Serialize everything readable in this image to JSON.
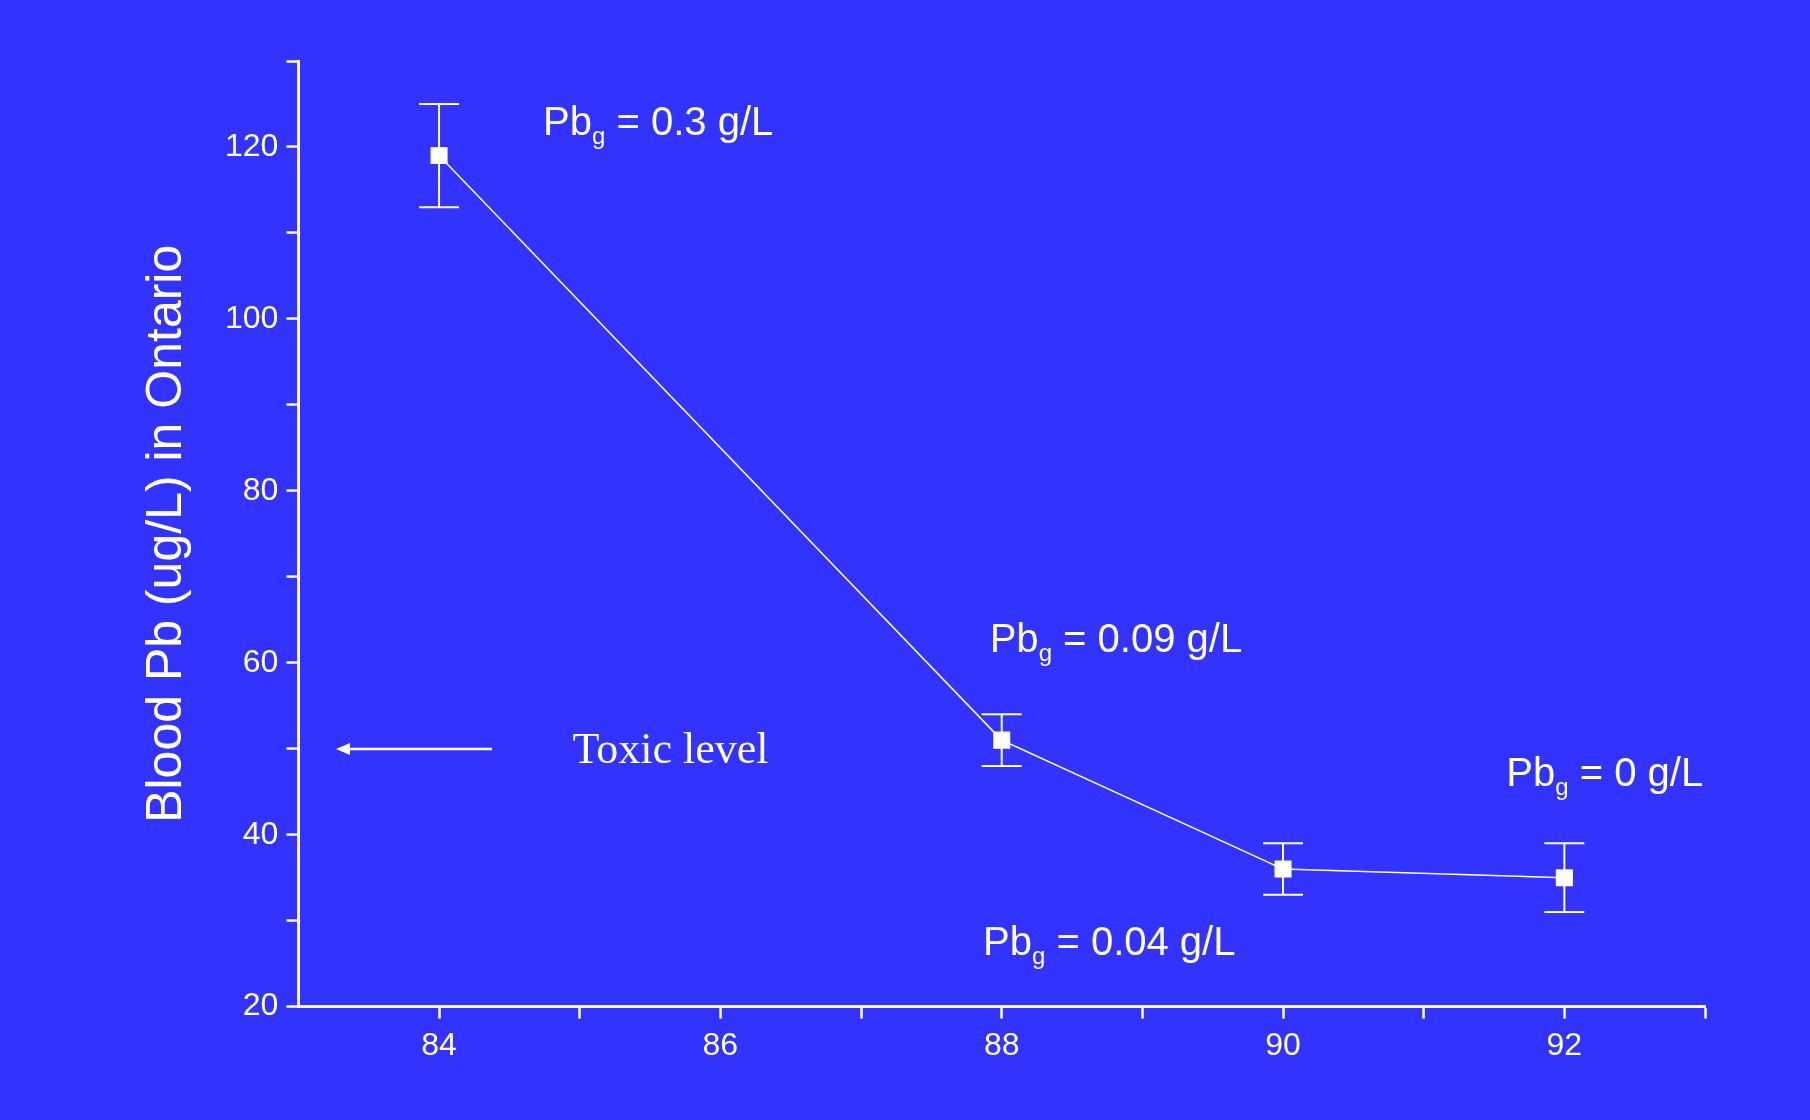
{
  "chart_data": {
    "type": "line",
    "ylabel": "Blood Pb (ug/L) in Ontario",
    "x": [
      84,
      88,
      90,
      92
    ],
    "series": [
      {
        "color": "#ffffff",
        "values": [
          119,
          51,
          36,
          35
        ],
        "errors": [
          [
            113,
            125
          ],
          [
            48,
            54
          ],
          [
            33,
            39
          ],
          [
            31,
            39
          ]
        ]
      }
    ],
    "xlim": [
      83,
      93
    ],
    "xticks": [
      {
        "value": 84,
        "label": "84"
      },
      {
        "value": 85,
        "label": null
      },
      {
        "value": 86,
        "label": "86"
      },
      {
        "value": 87,
        "label": null
      },
      {
        "value": 88,
        "label": "88"
      },
      {
        "value": 89,
        "label": null
      },
      {
        "value": 90,
        "label": "90"
      },
      {
        "value": 91,
        "label": null
      },
      {
        "value": 92,
        "label": "92"
      },
      {
        "value": 93,
        "label": null
      }
    ],
    "ylim": [
      20,
      130
    ],
    "yticks": [
      20,
      {
        "value": 30,
        "label": null
      },
      40,
      {
        "value": 50,
        "label": null
      },
      60,
      {
        "value": 70,
        "label": null
      },
      80,
      {
        "value": 90,
        "label": null
      },
      100,
      {
        "value": 110,
        "label": null
      },
      120,
      {
        "value": 130,
        "label": null
      }
    ],
    "marker": "square",
    "grid": false,
    "legend": false,
    "ref_lines": [
      {
        "axis": "y",
        "value": 50,
        "label": "Toxic level"
      }
    ],
    "annotations": [
      {
        "text": "Pb$_{g}$ = 0.3 g/L",
        "x": 84,
        "y": 119
      },
      {
        "text": "Pb$_{g}$ = 0.09 g/L",
        "x": 88,
        "y": 51
      },
      {
        "text": "Pb$_{g}$ = 0 g/L",
        "x": 92,
        "y": 35
      },
      {
        "text": "Pb$_{g}$ = 0.04 g/L",
        "x": 90,
        "y": 36
      }
    ]
  }
}
